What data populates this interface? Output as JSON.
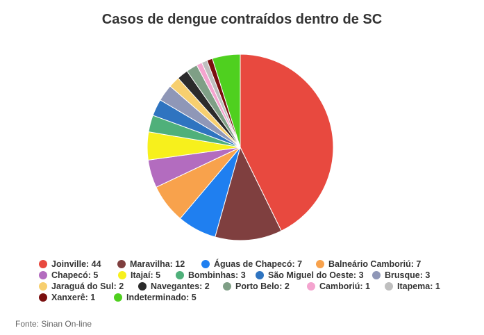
{
  "chart_data": {
    "type": "pie",
    "title": "Casos de dengue contraídos dentro de SC",
    "slices": [
      {
        "label": "Joinville",
        "value": 44,
        "color": "#e8493f"
      },
      {
        "label": "Maravilha",
        "value": 12,
        "color": "#7f3f3f"
      },
      {
        "label": "Águas de Chapecó",
        "value": 7,
        "color": "#1f7ff0"
      },
      {
        "label": "Balneário Camboriú",
        "value": 7,
        "color": "#f8a24c"
      },
      {
        "label": "Chapecó",
        "value": 5,
        "color": "#b36cbf"
      },
      {
        "label": "Itajaí",
        "value": 5,
        "color": "#f7f01c"
      },
      {
        "label": "Bombinhas",
        "value": 3,
        "color": "#4fb07a"
      },
      {
        "label": "São Miguel do Oeste",
        "value": 3,
        "color": "#2f74c0"
      },
      {
        "label": "Brusque",
        "value": 3,
        "color": "#8f97b7"
      },
      {
        "label": "Jaraguá do Sul",
        "value": 2,
        "color": "#f7cf6f"
      },
      {
        "label": "Navegantes",
        "value": 2,
        "color": "#2b2b2b"
      },
      {
        "label": "Porto Belo",
        "value": 2,
        "color": "#7f9f86"
      },
      {
        "label": "Camboriú",
        "value": 1,
        "color": "#f4a4cf"
      },
      {
        "label": "Itapema",
        "value": 1,
        "color": "#bfbfbf"
      },
      {
        "label": "Xanxerê",
        "value": 1,
        "color": "#7a0f0f"
      },
      {
        "label": "Indeterminado",
        "value": 5,
        "color": "#4fd01f"
      }
    ],
    "legend_position": "bottom"
  },
  "legend_labels": [
    "Joinville: 44",
    "Maravilha: 12",
    "Águas de Chapecó: 7",
    "Balneário Camboriú: 7",
    "Chapecó: 5",
    "Itajaí: 5",
    "Bombinhas: 3",
    "São Miguel do Oeste: 3",
    "Brusque: 3",
    "Jaraguá do Sul: 2",
    "Navegantes: 2",
    "Porto Belo: 2",
    "Camboriú: 1",
    "Itapema: 1",
    "Xanxerê: 1",
    "Indeterminado: 5"
  ],
  "source": "Fonte: Sinan On-line"
}
